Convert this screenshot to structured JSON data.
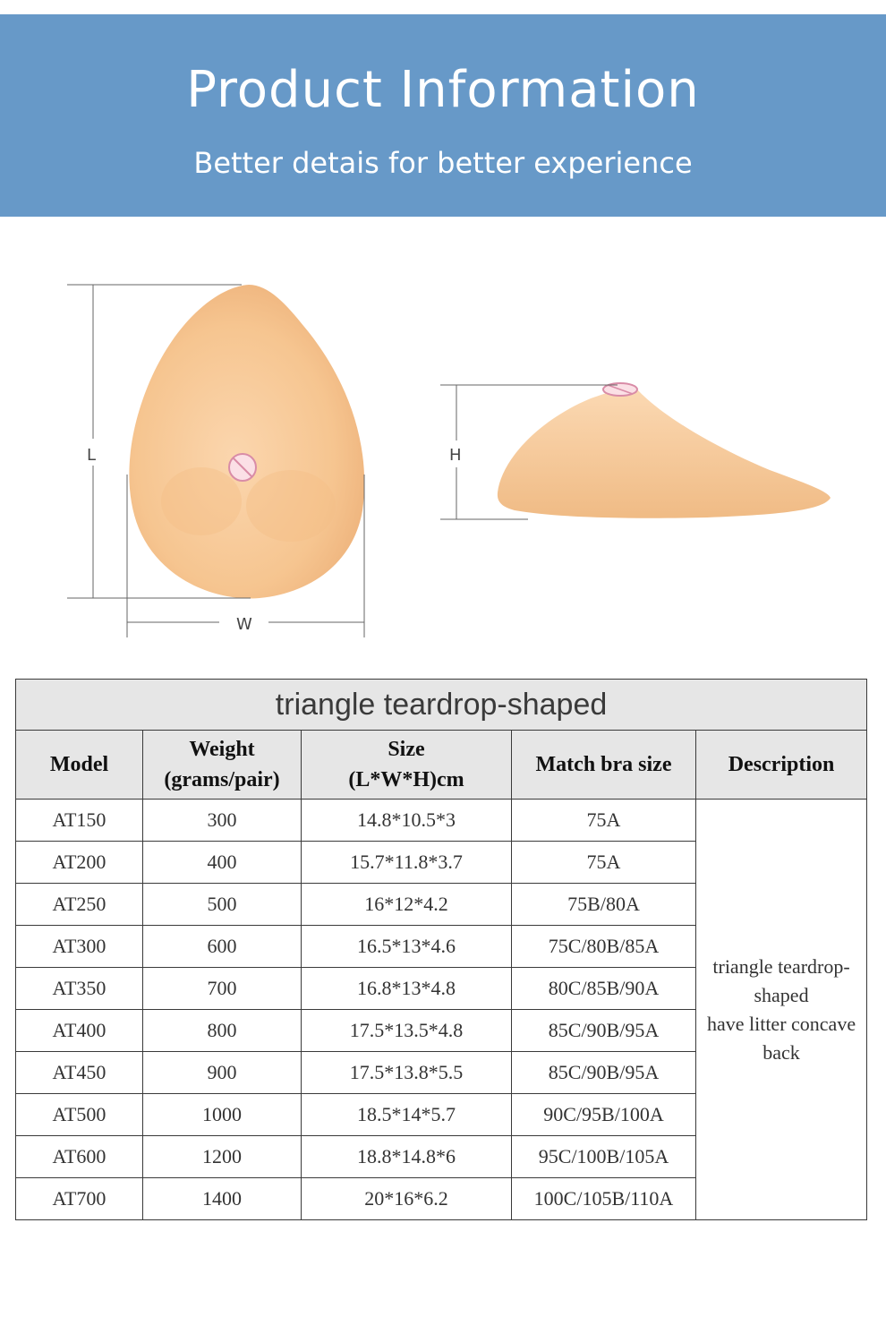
{
  "header": {
    "title": "Product Information",
    "subtitle": "Better detais for better experience"
  },
  "diagram": {
    "length_label": "L",
    "width_label": "W",
    "height_label": "H",
    "skin_color": "#f7c898",
    "line_color": "#666666"
  },
  "table": {
    "caption": "triangle teardrop-shaped",
    "headers": [
      [
        "Model"
      ],
      [
        "Weight",
        "(grams/pair)"
      ],
      [
        "Size",
        "(L*W*H)cm"
      ],
      [
        "Match bra size"
      ],
      [
        "Description"
      ]
    ],
    "rows": [
      [
        "AT150",
        "300",
        "14.8*10.5*3",
        "75A"
      ],
      [
        "AT200",
        "400",
        "15.7*11.8*3.7",
        "75A"
      ],
      [
        "AT250",
        "500",
        "16*12*4.2",
        "75B/80A"
      ],
      [
        "AT300",
        "600",
        "16.5*13*4.6",
        "75C/80B/85A"
      ],
      [
        "AT350",
        "700",
        "16.8*13*4.8",
        "80C/85B/90A"
      ],
      [
        "AT400",
        "800",
        "17.5*13.5*4.8",
        "85C/90B/95A"
      ],
      [
        "AT450",
        "900",
        "17.5*13.8*5.5",
        "85C/90B/95A"
      ],
      [
        "AT500",
        "1000",
        "18.5*14*5.7",
        "90C/95B/100A"
      ],
      [
        "AT600",
        "1200",
        "18.8*14.8*6",
        "95C/100B/105A"
      ],
      [
        "AT700",
        "1400",
        "20*16*6.2",
        "100C/105B/110A"
      ]
    ],
    "description_lines": [
      "triangle teardrop-",
      "shaped",
      "have litter concave",
      "back"
    ]
  },
  "colors": {
    "banner": "#6799c8",
    "table_header_bg": "#e6e6e6"
  }
}
